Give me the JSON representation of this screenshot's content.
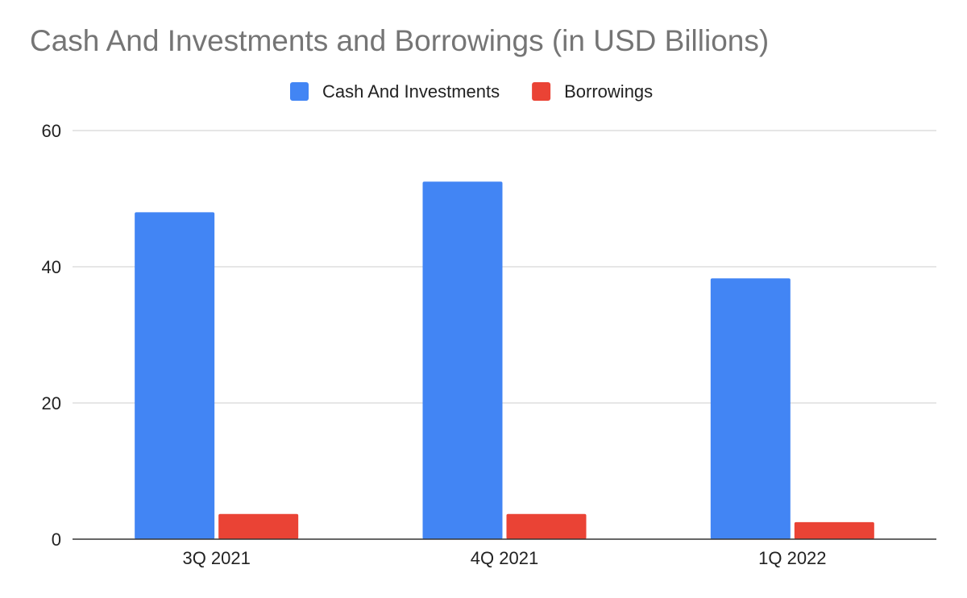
{
  "chart_data": {
    "type": "bar",
    "title": "Cash And Investments and Borrowings (in USD Billions)",
    "xlabel": "",
    "ylabel": "",
    "categories": [
      "3Q 2021",
      "4Q 2021",
      "1Q 2022"
    ],
    "series": [
      {
        "name": "Cash And Investments",
        "color": "#4285f4",
        "values": [
          48.0,
          52.5,
          38.3
        ]
      },
      {
        "name": "Borrowings",
        "color": "#ea4335",
        "values": [
          3.7,
          3.7,
          2.5
        ]
      }
    ],
    "ylim": [
      0,
      60
    ],
    "yticks": [
      0,
      20,
      40,
      60
    ],
    "grid": true,
    "legend_position": "top-center"
  }
}
